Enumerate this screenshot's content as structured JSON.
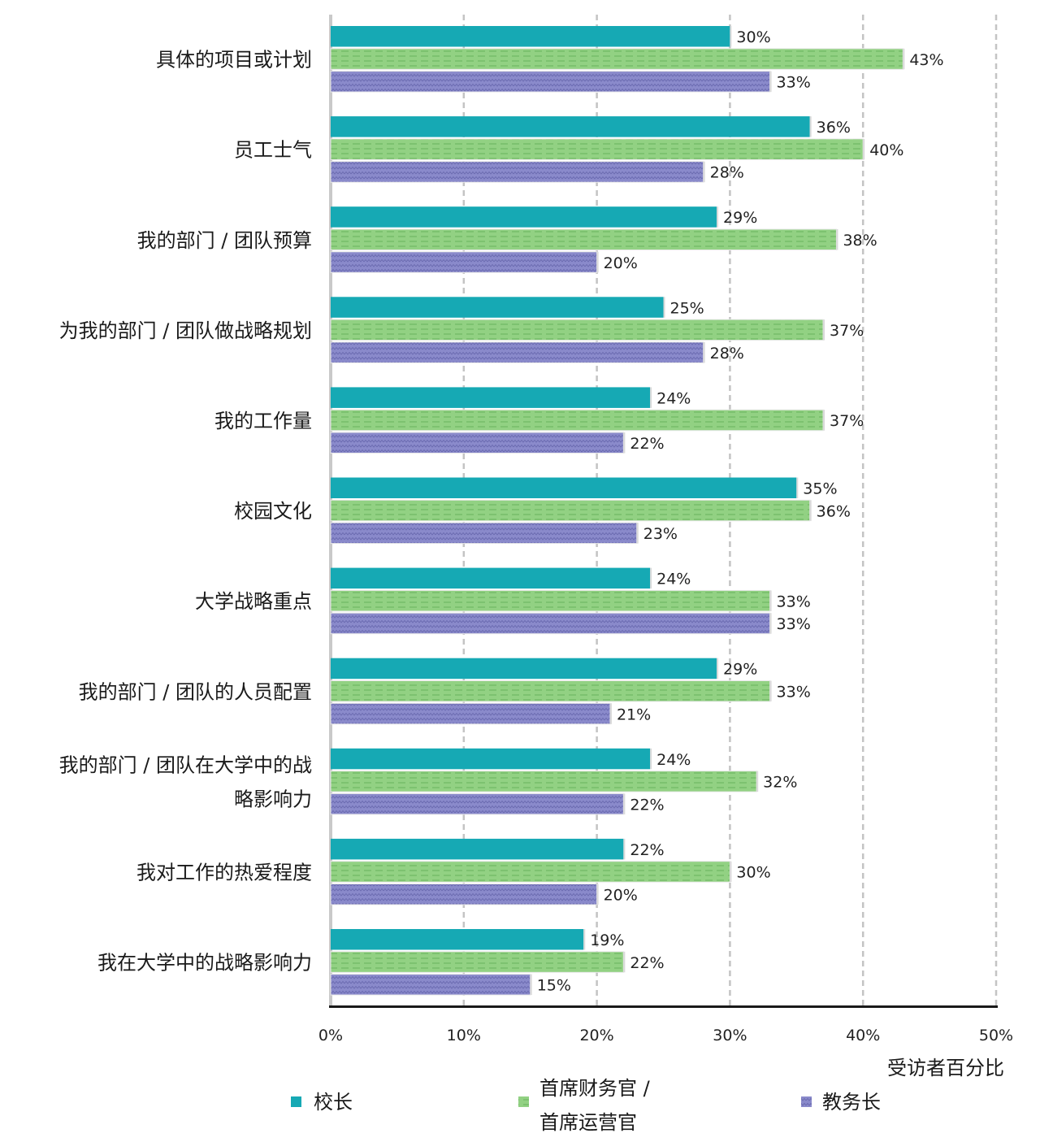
{
  "chart_data": {
    "type": "bar",
    "orientation": "horizontal",
    "categories": [
      [
        "具体的项目或计划"
      ],
      [
        "员工士气"
      ],
      [
        "我的部门 / 团队预算"
      ],
      [
        "为我的部门 / 团队做战略规划"
      ],
      [
        "我的工作量"
      ],
      [
        "校园文化"
      ],
      [
        "大学战略重点"
      ],
      [
        "我的部门 / 团队的人员配置"
      ],
      [
        "我的部门 / 团队在大学中的战",
        "略影响力"
      ],
      [
        "我对工作的热爱程度"
      ],
      [
        "我在大学中的战略影响力"
      ]
    ],
    "series": [
      {
        "name": "校长",
        "values": [
          30,
          36,
          29,
          25,
          24,
          35,
          24,
          29,
          24,
          22,
          19
        ],
        "color": "#16a9b4",
        "pattern": "solid"
      },
      {
        "name": "首席财务官 / 首席运营官",
        "name_lines": [
          "首席财务官 /",
          "首席运营官"
        ],
        "values": [
          43,
          40,
          38,
          37,
          37,
          36,
          33,
          33,
          32,
          30,
          22
        ],
        "color": "#8fcf80",
        "pattern": "dashed-lines"
      },
      {
        "name": "教务长",
        "values": [
          33,
          28,
          20,
          28,
          22,
          23,
          33,
          21,
          22,
          20,
          15
        ],
        "color": "#8383c6",
        "pattern": "zigzag"
      }
    ],
    "value_suffix": "%",
    "xlim": [
      0,
      50
    ],
    "xticks": [
      "0%",
      "10%",
      "20%",
      "30%",
      "40%",
      "50%"
    ],
    "xlabel": "受访者百分比",
    "grid": "vertical dashed",
    "legend_position": "bottom"
  }
}
